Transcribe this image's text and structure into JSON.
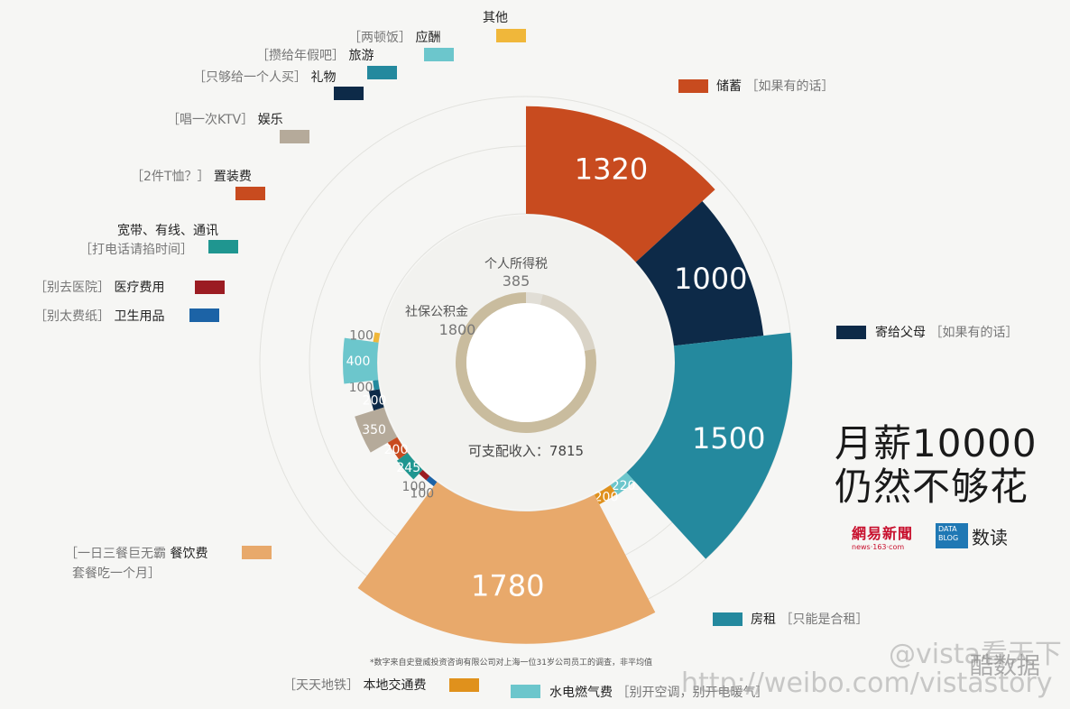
{
  "chart_data": {
    "type": "pie",
    "title": "月薪10000 仍然不够花",
    "total_income": 10000,
    "inner_ring": [
      {
        "label": "个人所得税",
        "value": 385
      },
      {
        "label": "社保公积金",
        "value": 1800
      },
      {
        "label": "可支配收入",
        "value": 7815
      }
    ],
    "inner_labels": {
      "tax_label": "个人所得税",
      "tax_value": "385",
      "social_label": "社保公积金",
      "social_value": "1800",
      "disposable": "可支配收入：7815"
    },
    "slices": [
      {
        "name": "储蓄",
        "value": 1320,
        "note": "［如果有的话］",
        "color": "#c84b1f"
      },
      {
        "name": "寄给父母",
        "value": 1000,
        "note": "［如果有的话］",
        "color": "#0d2a48"
      },
      {
        "name": "房租",
        "value": 1500,
        "note": "［只能是合租］",
        "color": "#24899e"
      },
      {
        "name": "水电燃气费",
        "value": 220,
        "note": "［别开空调，别开电暖气］",
        "color": "#6cc6cc"
      },
      {
        "name": "本地交通费",
        "value": 200,
        "note": "［天天地铁］",
        "color": "#e0911c"
      },
      {
        "name": "餐饮费",
        "value": 1780,
        "note": "［一日三餐巨无霸 套餐吃一个月］",
        "color": "#e8a96b"
      },
      {
        "name": "卫生用品",
        "value": 100,
        "note": "［别太费纸］",
        "color": "#1c63a6"
      },
      {
        "name": "医疗费用",
        "value": 100,
        "note": "［别去医院］",
        "color": "#9b1c22"
      },
      {
        "name": "宽带、有线、通讯",
        "value": 245,
        "note": "［打电话请掐时间］",
        "color": "#1f9690"
      },
      {
        "name": "置装费",
        "value": 200,
        "note": "［2件T恤？］",
        "color": "#c84b1f"
      },
      {
        "name": "娱乐",
        "value": 350,
        "note": "［唱一次KTV］",
        "color": "#b5aa9a"
      },
      {
        "name": "礼物",
        "value": 200,
        "note": "［只够给一个人买］",
        "color": "#0d2a48"
      },
      {
        "name": "旅游",
        "value": 100,
        "note": "［攒给年假吧］",
        "color": "#24899e"
      },
      {
        "name": "应酬",
        "value": 400,
        "note": "［两顿饭］",
        "color": "#6cc6cc"
      },
      {
        "name": "其他",
        "value": 100,
        "note": "",
        "color": "#f0b73a"
      }
    ],
    "legend_placement": "around"
  },
  "legend": {
    "chuxu": {
      "name": "储蓄",
      "note": "［如果有的话］"
    },
    "fumu": {
      "name": "寄给父母",
      "note": "［如果有的话］"
    },
    "fangzu": {
      "name": "房租",
      "note": "［只能是合租］"
    },
    "shuidian": {
      "name": "水电燃气费",
      "note": "［别开空调，别开电暖气］"
    },
    "jiaotong": {
      "name": "本地交通费",
      "note": "［天天地铁］"
    },
    "canyin": {
      "name": "餐饮费",
      "note1": "［一日三餐巨无霸",
      "note2": "套餐吃一个月］"
    },
    "weisheng": {
      "name": "卫生用品",
      "note": "［别太费纸］"
    },
    "yiliao": {
      "name": "医疗费用",
      "note": "［别去医院］"
    },
    "kuandai": {
      "name": "宽带、有线、通讯",
      "note": "［打电话请掐时间］"
    },
    "zhizhuang": {
      "name": "置装费",
      "note": "［2件T恤？］"
    },
    "yule": {
      "name": "娱乐",
      "note": "［唱一次KTV］"
    },
    "liwu": {
      "name": "礼物",
      "note": "［只够给一个人买］"
    },
    "lvyou": {
      "name": "旅游",
      "note": "［攒给年假吧］"
    },
    "yingchou": {
      "name": "应酬",
      "note": "［两顿饭］"
    },
    "qita": {
      "name": "其他"
    }
  },
  "title": {
    "line1": "月薪10000",
    "line2": "仍然不够花"
  },
  "branding": {
    "netease": "網易新聞",
    "netease_url": "news·163·com",
    "datablog": "DATA BLOG",
    "shudu": "数读"
  },
  "footnote": "*数字来自史登威投资咨询有限公司对上海一位31岁公司员工的调查，非平均值",
  "watermarks": {
    "weibo_handle": "@vista看天下",
    "weibo_url": "http://weibo.com/vistastory",
    "brand": "酷数据"
  }
}
